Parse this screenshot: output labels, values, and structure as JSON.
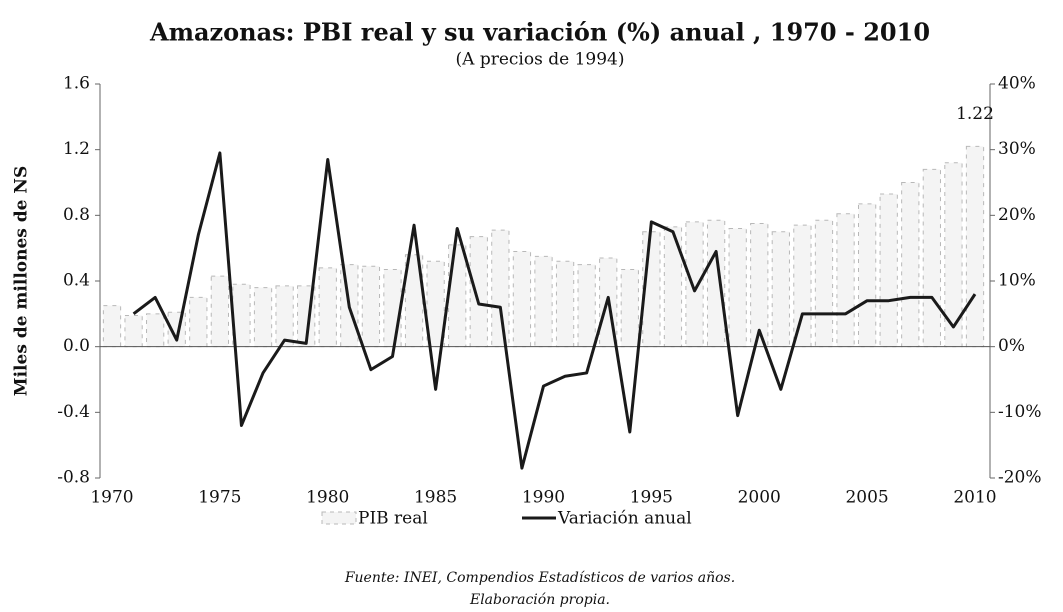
{
  "chart_data": {
    "type": "bar",
    "title": "Amazonas: PBI real y su variación (%) anual , 1970 - 2010",
    "subtitle": "(A precios de 1994)",
    "y_label": "Miles de millones de NS",
    "source": [
      "Fuente: INEI, Compendios Estadísticos de varios años.",
      "Elaboración propia."
    ],
    "x": [
      1970,
      1971,
      1972,
      1973,
      1974,
      1975,
      1976,
      1977,
      1978,
      1979,
      1980,
      1981,
      1982,
      1983,
      1984,
      1985,
      1986,
      1987,
      1988,
      1989,
      1990,
      1991,
      1992,
      1993,
      1994,
      1995,
      1996,
      1997,
      1998,
      1999,
      2000,
      2001,
      2002,
      2003,
      2004,
      2005,
      2006,
      2007,
      2008,
      2009,
      2010
    ],
    "series": [
      {
        "name": "PIB real",
        "type": "bar",
        "color": "#f4f4f4",
        "values": [
          0.25,
          0.19,
          0.2,
          0.21,
          0.3,
          0.43,
          0.38,
          0.36,
          0.37,
          0.37,
          0.48,
          0.5,
          0.49,
          0.47,
          0.56,
          0.52,
          0.62,
          0.67,
          0.71,
          0.58,
          0.55,
          0.52,
          0.5,
          0.54,
          0.47,
          0.7,
          0.73,
          0.76,
          0.77,
          0.72,
          0.75,
          0.7,
          0.74,
          0.77,
          0.81,
          0.87,
          0.93,
          1.0,
          1.08,
          1.12,
          1.22
        ]
      },
      {
        "name": "Variación anual",
        "type": "line",
        "axis": "y2",
        "color": "#1a1a1a",
        "values": [
          null,
          5,
          7.5,
          1,
          17,
          29.5,
          -12,
          -4,
          1,
          0.5,
          28.5,
          6,
          -3.5,
          -1.5,
          18.5,
          -6.5,
          18,
          6.5,
          6,
          -18.5,
          -6,
          -4.5,
          -4,
          7.5,
          -13,
          19,
          17.5,
          8.5,
          14.5,
          -10.5,
          2.5,
          -6.5,
          5,
          5,
          5,
          7,
          7,
          7.5,
          7.5,
          3,
          8
        ]
      }
    ],
    "xlim": [
      1970,
      2010
    ],
    "xticks": [
      1970,
      1975,
      1980,
      1985,
      1990,
      1995,
      2000,
      2005,
      2010
    ],
    "ylim": [
      -0.8,
      1.6
    ],
    "yticks": [
      -0.8,
      -0.4,
      {
        "value": 0,
        "label": "0.0"
      },
      0.4,
      0.8,
      1.2,
      1.6
    ],
    "y2lim": [
      -20,
      40
    ],
    "y2ticks": [
      {
        "value": -20,
        "label": "-20%"
      },
      {
        "value": -10,
        "label": "-10%"
      },
      {
        "value": 0,
        "label": "0%"
      },
      {
        "value": 10,
        "label": "10%"
      },
      {
        "value": 20,
        "label": "20%"
      },
      {
        "value": 30,
        "label": "30%"
      },
      {
        "value": 40,
        "label": "40%"
      }
    ]
  }
}
